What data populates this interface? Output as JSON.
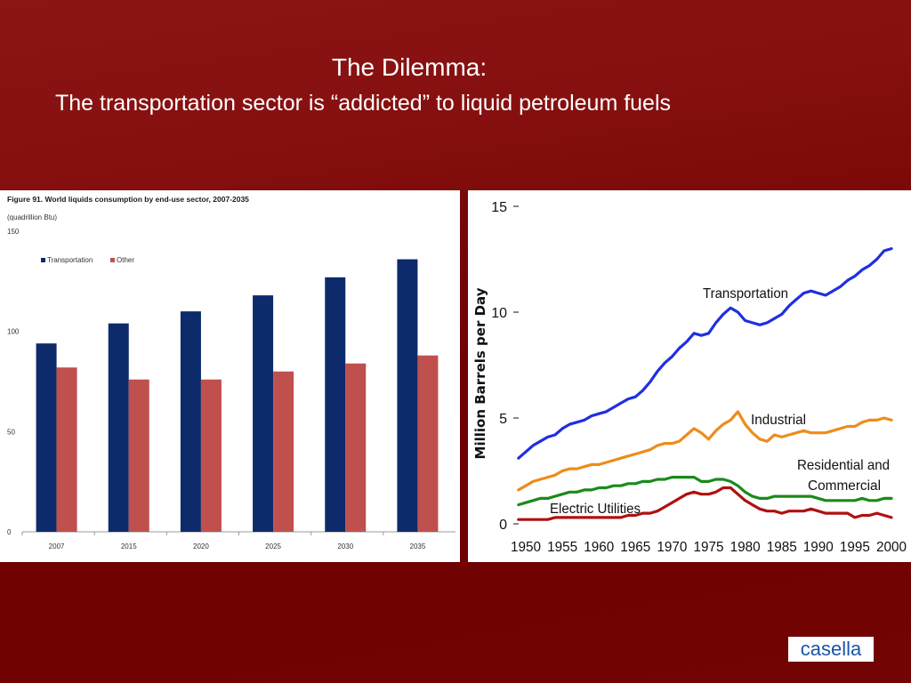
{
  "slide": {
    "title": "The Dilemma:",
    "subtitle": "The transportation sector is “addicted” to liquid petroleum fuels",
    "logo": "casella"
  },
  "colors": {
    "background": "#700000",
    "transportation_bar": "#0d2a6b",
    "other_bar": "#c0504d",
    "transportation_line": "#1f2fe0",
    "industrial_line": "#ee8c1a",
    "residential_line": "#1a8a1a",
    "electric_line": "#b01010",
    "logo_text": "#1a55a8"
  },
  "chart_data": [
    {
      "type": "bar",
      "title": "Figure 91. World liquids consumption by end-use sector, 2007-2035",
      "unit_label": "(quadrillion Btu)",
      "categories": [
        "2007",
        "2015",
        "2020",
        "2025",
        "2030",
        "2035"
      ],
      "series": [
        {
          "name": "Transportation",
          "values": [
            94,
            104,
            110,
            118,
            127,
            136
          ]
        },
        {
          "name": "Other",
          "values": [
            82,
            76,
            76,
            80,
            84,
            88
          ]
        }
      ],
      "ylim": [
        0,
        150
      ],
      "yticks": [
        "0",
        "50",
        "100",
        "150"
      ],
      "legend": "top-left",
      "grid": false
    },
    {
      "type": "line",
      "ylabel": "Million Barrels per Day",
      "xlim": [
        1950,
        2000
      ],
      "ylim": [
        0,
        15
      ],
      "xticks": [
        "1950",
        "1955",
        "1960",
        "1965",
        "1970",
        "1975",
        "1980",
        "1985",
        "1990",
        "1995",
        "2000"
      ],
      "yticks": [
        "0",
        "5",
        "10",
        "15"
      ],
      "x": [
        1949,
        1950,
        1951,
        1952,
        1953,
        1954,
        1955,
        1956,
        1957,
        1958,
        1959,
        1960,
        1961,
        1962,
        1963,
        1964,
        1965,
        1966,
        1967,
        1968,
        1969,
        1970,
        1971,
        1972,
        1973,
        1974,
        1975,
        1976,
        1977,
        1978,
        1979,
        1980,
        1981,
        1982,
        1983,
        1984,
        1985,
        1986,
        1987,
        1988,
        1989,
        1990,
        1991,
        1992,
        1993,
        1994,
        1995,
        1996,
        1997,
        1998,
        1999,
        2000
      ],
      "series": [
        {
          "name": "Transportation",
          "values": [
            3.1,
            3.4,
            3.7,
            3.9,
            4.1,
            4.2,
            4.5,
            4.7,
            4.8,
            4.9,
            5.1,
            5.2,
            5.3,
            5.5,
            5.7,
            5.9,
            6.0,
            6.3,
            6.7,
            7.2,
            7.6,
            7.9,
            8.3,
            8.6,
            9.0,
            8.9,
            9.0,
            9.5,
            9.9,
            10.2,
            10.0,
            9.6,
            9.5,
            9.4,
            9.5,
            9.7,
            9.9,
            10.3,
            10.6,
            10.9,
            11.0,
            10.9,
            10.8,
            11.0,
            11.2,
            11.5,
            11.7,
            12.0,
            12.2,
            12.5,
            12.9,
            13.0
          ]
        },
        {
          "name": "Industrial",
          "values": [
            1.6,
            1.8,
            2.0,
            2.1,
            2.2,
            2.3,
            2.5,
            2.6,
            2.6,
            2.7,
            2.8,
            2.8,
            2.9,
            3.0,
            3.1,
            3.2,
            3.3,
            3.4,
            3.5,
            3.7,
            3.8,
            3.8,
            3.9,
            4.2,
            4.5,
            4.3,
            4.0,
            4.4,
            4.7,
            4.9,
            5.3,
            4.7,
            4.3,
            4.0,
            3.9,
            4.2,
            4.1,
            4.2,
            4.3,
            4.4,
            4.3,
            4.3,
            4.3,
            4.4,
            4.5,
            4.6,
            4.6,
            4.8,
            4.9,
            4.9,
            5.0,
            4.9
          ]
        },
        {
          "name": "Residential and Commercial",
          "values": [
            0.9,
            1.0,
            1.1,
            1.2,
            1.2,
            1.3,
            1.4,
            1.5,
            1.5,
            1.6,
            1.6,
            1.7,
            1.7,
            1.8,
            1.8,
            1.9,
            1.9,
            2.0,
            2.0,
            2.1,
            2.1,
            2.2,
            2.2,
            2.2,
            2.2,
            2.0,
            2.0,
            2.1,
            2.1,
            2.0,
            1.8,
            1.5,
            1.3,
            1.2,
            1.2,
            1.3,
            1.3,
            1.3,
            1.3,
            1.3,
            1.3,
            1.2,
            1.1,
            1.1,
            1.1,
            1.1,
            1.1,
            1.2,
            1.1,
            1.1,
            1.2,
            1.2
          ]
        },
        {
          "name": "Electric Utilities",
          "values": [
            0.2,
            0.2,
            0.2,
            0.2,
            0.2,
            0.3,
            0.3,
            0.3,
            0.3,
            0.3,
            0.3,
            0.3,
            0.3,
            0.3,
            0.3,
            0.4,
            0.4,
            0.5,
            0.5,
            0.6,
            0.8,
            1.0,
            1.2,
            1.4,
            1.5,
            1.4,
            1.4,
            1.5,
            1.7,
            1.7,
            1.4,
            1.1,
            0.9,
            0.7,
            0.6,
            0.6,
            0.5,
            0.6,
            0.6,
            0.6,
            0.7,
            0.6,
            0.5,
            0.5,
            0.5,
            0.5,
            0.3,
            0.4,
            0.4,
            0.5,
            0.4,
            0.3
          ]
        }
      ],
      "labels": [
        "Transportation",
        "Industrial",
        "Residential and",
        "Commercial",
        "Electric Utilities"
      ],
      "grid": false
    }
  ]
}
